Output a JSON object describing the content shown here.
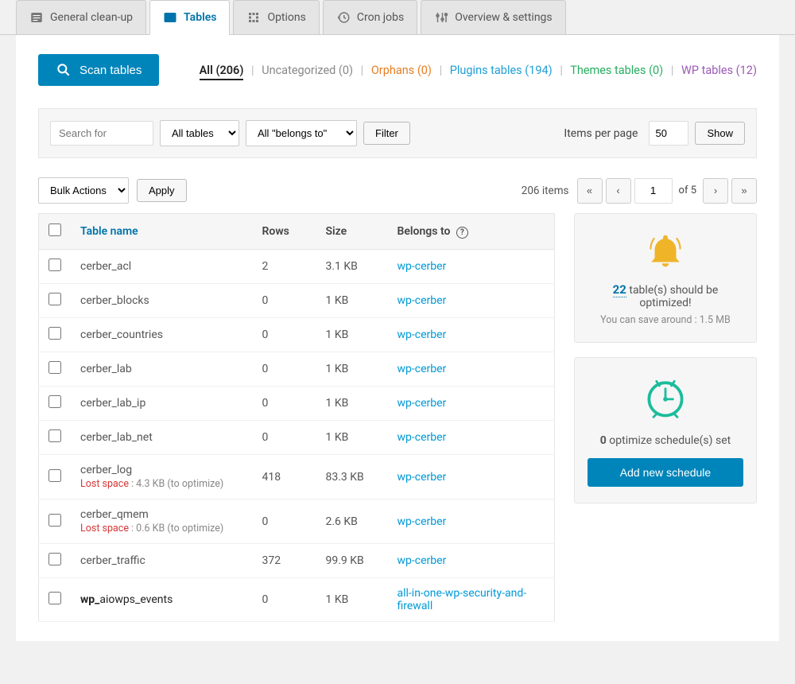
{
  "tabs": [
    {
      "label": "General clean-up"
    },
    {
      "label": "Tables"
    },
    {
      "label": "Options"
    },
    {
      "label": "Cron jobs"
    },
    {
      "label": "Overview & settings"
    }
  ],
  "scan_button": "Scan tables",
  "filter_links": {
    "all": "All (206)",
    "uncat": "Uncategorized (0)",
    "orphans": "Orphans (0)",
    "plugins": "Plugins tables (194)",
    "themes": "Themes tables (0)",
    "wp": "WP tables (12)"
  },
  "search": {
    "placeholder": "Search for"
  },
  "dropdowns": {
    "tables": "All tables",
    "belongs": "All \"belongs to\""
  },
  "filter_btn": "Filter",
  "ipp": {
    "label": "Items per page",
    "value": "50",
    "show": "Show"
  },
  "bulk": {
    "label": "Bulk Actions",
    "apply": "Apply"
  },
  "pagination": {
    "items": "206 items",
    "current": "1",
    "of": "of 5"
  },
  "columns": {
    "name": "Table name",
    "rows": "Rows",
    "size": "Size",
    "belongs": "Belongs to"
  },
  "rows": [
    {
      "name": "cerber_acl",
      "rows": "2",
      "size": "3.1 KB",
      "belongs": "wp-cerber"
    },
    {
      "name": "cerber_blocks",
      "rows": "0",
      "size": "1 KB",
      "belongs": "wp-cerber"
    },
    {
      "name": "cerber_countries",
      "rows": "0",
      "size": "1 KB",
      "belongs": "wp-cerber"
    },
    {
      "name": "cerber_lab",
      "rows": "0",
      "size": "1 KB",
      "belongs": "wp-cerber"
    },
    {
      "name": "cerber_lab_ip",
      "rows": "0",
      "size": "1 KB",
      "belongs": "wp-cerber"
    },
    {
      "name": "cerber_lab_net",
      "rows": "0",
      "size": "1 KB",
      "belongs": "wp-cerber"
    },
    {
      "name": "cerber_log",
      "rows": "418",
      "size": "83.3 KB",
      "belongs": "wp-cerber",
      "lost": "4.3 KB"
    },
    {
      "name": "cerber_qmem",
      "rows": "0",
      "size": "2.6 KB",
      "belongs": "wp-cerber",
      "lost": "0.6 KB"
    },
    {
      "name": "cerber_traffic",
      "rows": "372",
      "size": "99.9 KB",
      "belongs": "wp-cerber"
    },
    {
      "name": "wp_aiowps_events",
      "prefix": "wp_",
      "suffix": "aiowps_events",
      "rows": "0",
      "size": "1 KB",
      "belongs": "all-in-one-wp-security-and-firewall"
    }
  ],
  "lost_label": "Lost space",
  "lost_suffix": "(to optimize)",
  "optimize_card": {
    "count": "22",
    "text1": " table(s) should be optimized!",
    "text2": "You can save around : 1.5 MB"
  },
  "schedule_card": {
    "count": "0",
    "text": " optimize schedule(s) set",
    "button": "Add new schedule"
  }
}
